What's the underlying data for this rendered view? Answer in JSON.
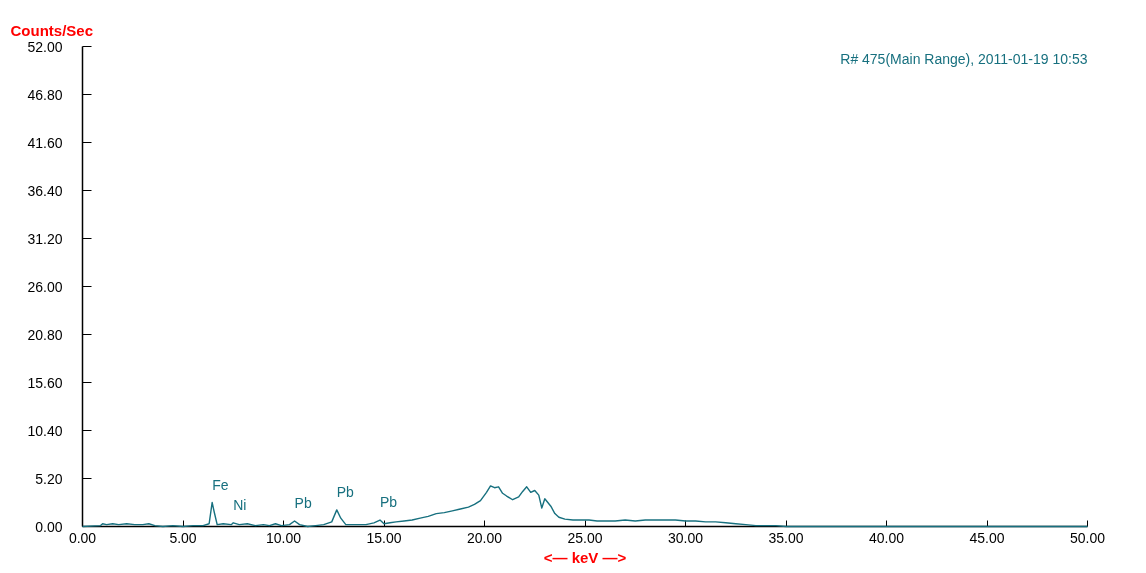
{
  "chart_data": {
    "type": "line",
    "ylabel": "Counts/Sec",
    "xlabel": "<— keV —>",
    "annotations": [
      "R# 475(Main Range), 2011-01-19 10:53",
      {
        "text": "Fe",
        "x": 6.45,
        "y": 2.6
      },
      {
        "text": "Ni",
        "x": 7.5,
        "y": 0.4
      },
      {
        "text": "Pb",
        "x": 10.55,
        "y": 0.6
      },
      {
        "text": "Pb",
        "x": 12.65,
        "y": 1.8
      },
      {
        "text": "Pb",
        "x": 14.8,
        "y": 0.7
      }
    ],
    "x": [
      0,
      0.9,
      1.0,
      1.2,
      1.5,
      1.8,
      2.2,
      2.6,
      3.0,
      3.3,
      3.6,
      4.0,
      4.5,
      5.0,
      5.5,
      6.0,
      6.3,
      6.45,
      6.55,
      6.7,
      7.0,
      7.4,
      7.5,
      7.8,
      8.2,
      8.6,
      9.0,
      9.3,
      9.6,
      9.9,
      10.3,
      10.55,
      10.8,
      11.2,
      11.6,
      12.0,
      12.4,
      12.65,
      12.85,
      13.1,
      13.6,
      14.1,
      14.5,
      14.8,
      15.0,
      15.3,
      15.6,
      16.0,
      16.4,
      16.8,
      17.2,
      17.6,
      18.0,
      18.4,
      18.8,
      19.2,
      19.5,
      19.8,
      20.1,
      20.3,
      20.5,
      20.7,
      20.9,
      21.1,
      21.4,
      21.7,
      21.9,
      22.1,
      22.3,
      22.5,
      22.7,
      22.85,
      23.0,
      23.3,
      23.5,
      23.7,
      24.0,
      24.4,
      24.8,
      25.2,
      25.6,
      26.0,
      26.5,
      27.0,
      27.5,
      28.0,
      28.5,
      29.0,
      29.5,
      30.0,
      30.5,
      31.0,
      31.5,
      32.0,
      32.5,
      33.0,
      33.5,
      34.0,
      34.5,
      35,
      50
    ],
    "values": [
      0,
      0.1,
      0.3,
      0.2,
      0.3,
      0.2,
      0.3,
      0.2,
      0.2,
      0.3,
      0.1,
      0.0,
      0.1,
      0.0,
      0.1,
      0.1,
      0.3,
      2.6,
      1.6,
      0.2,
      0.3,
      0.2,
      0.4,
      0.2,
      0.3,
      0.1,
      0.2,
      0.1,
      0.3,
      0.1,
      0.2,
      0.6,
      0.2,
      0.0,
      0.1,
      0.2,
      0.5,
      1.8,
      0.9,
      0.2,
      0.2,
      0.2,
      0.4,
      0.7,
      0.3,
      0.4,
      0.5,
      0.6,
      0.7,
      0.9,
      1.1,
      1.4,
      1.5,
      1.7,
      1.9,
      2.1,
      2.4,
      2.8,
      3.7,
      4.4,
      4.2,
      4.3,
      3.6,
      3.3,
      2.9,
      3.2,
      3.8,
      4.3,
      3.7,
      3.9,
      3.4,
      2.0,
      3.0,
      2.2,
      1.4,
      1.0,
      0.8,
      0.7,
      0.7,
      0.7,
      0.6,
      0.6,
      0.6,
      0.7,
      0.6,
      0.7,
      0.7,
      0.7,
      0.7,
      0.6,
      0.6,
      0.5,
      0.5,
      0.4,
      0.3,
      0.2,
      0.1,
      0.1,
      0.1,
      0,
      0
    ],
    "color": "#17707f",
    "xlim": [
      0,
      50
    ],
    "xticks": [
      {
        "value": 0,
        "label": "0.00"
      },
      {
        "value": 5,
        "label": "5.00"
      },
      {
        "value": 10,
        "label": "10.00"
      },
      {
        "value": 15,
        "label": "15.00"
      },
      {
        "value": 20,
        "label": "20.00"
      },
      {
        "value": 25,
        "label": "25.00"
      },
      {
        "value": 30,
        "label": "30.00"
      },
      {
        "value": 35,
        "label": "35.00"
      },
      {
        "value": 40,
        "label": "40.00"
      },
      {
        "value": 45,
        "label": "45.00"
      },
      {
        "value": 50,
        "label": "50.00"
      }
    ],
    "ylim": [
      0,
      52
    ],
    "yticks": [
      {
        "value": 0,
        "label": "0.00"
      },
      {
        "value": 5.2,
        "label": "5.20"
      },
      {
        "value": 10.4,
        "label": "10.40"
      },
      {
        "value": 15.6,
        "label": "15.60"
      },
      {
        "value": 20.8,
        "label": "20.80"
      },
      {
        "value": 26,
        "label": "26.00"
      },
      {
        "value": 31.2,
        "label": "31.20"
      },
      {
        "value": 36.4,
        "label": "36.40"
      },
      {
        "value": 41.6,
        "label": "41.60"
      },
      {
        "value": 46.8,
        "label": "46.80"
      },
      {
        "value": 52,
        "label": "52.00"
      }
    ],
    "grid": false,
    "marker": "none",
    "line_style": "solid"
  }
}
